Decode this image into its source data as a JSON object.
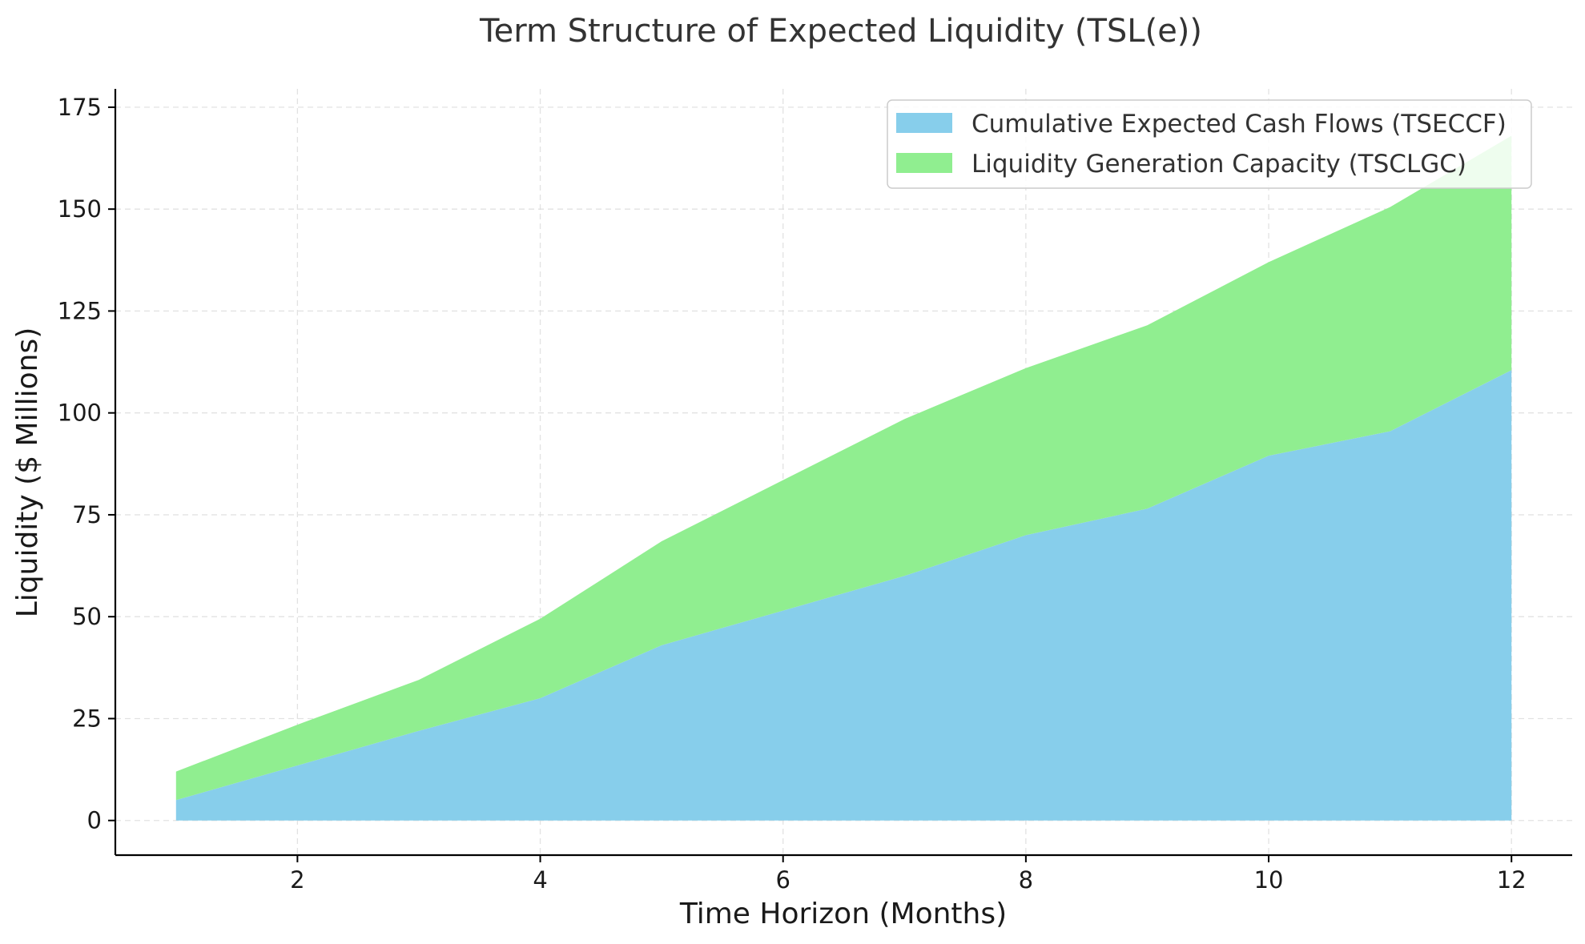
{
  "chart_data": {
    "type": "area",
    "stacked": true,
    "title": "Term Structure of Expected Liquidity (TSL(e))",
    "xlabel": "Time Horizon (Months)",
    "ylabel": "Liquidity ($ Millions)",
    "x": [
      1,
      2,
      3,
      4,
      5,
      6,
      7,
      8,
      9,
      10,
      11,
      12
    ],
    "xlim": [
      0.5,
      12.5
    ],
    "ylim": [
      -8.5,
      179.5
    ],
    "xticks": [
      2,
      4,
      6,
      8,
      10,
      12
    ],
    "yticks": [
      0,
      25,
      50,
      75,
      100,
      125,
      150,
      175
    ],
    "grid": true,
    "legend_position": "top-right",
    "series": [
      {
        "name": "Cumulative Expected Cash Flows (TSECCF)",
        "color": "#87CEEB",
        "values": [
          5,
          13.5,
          22,
          30,
          43,
          51.5,
          60,
          70,
          76.5,
          89.5,
          95.5,
          110.5
        ]
      },
      {
        "name": "Liquidity Generation Capacity (TSCLGC)",
        "color": "#90EE90",
        "values": [
          7,
          10,
          12.5,
          19.5,
          25.5,
          32,
          38.5,
          41,
          45,
          47.5,
          55,
          57.5
        ]
      }
    ]
  }
}
